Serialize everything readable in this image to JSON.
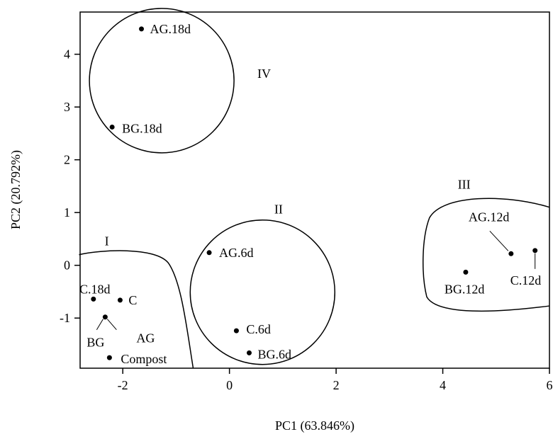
{
  "chart_data": {
    "type": "scatter",
    "title": "",
    "xlabel": "PC1 (63.846%)",
    "ylabel": "PC2 (20.792%)",
    "xlim": [
      -2.8,
      6
    ],
    "ylim": [
      -1.95,
      4.8
    ],
    "xticks": [
      -2,
      0,
      2,
      4,
      6
    ],
    "yticks": [
      -1,
      0,
      1,
      2,
      3,
      4
    ],
    "grid": false,
    "legend": "none",
    "points": [
      {
        "label": "AG.18d",
        "x": -1.65,
        "y": 4.48
      },
      {
        "label": "BG.18d",
        "x": -2.2,
        "y": 2.62
      },
      {
        "label": "AG.6d",
        "x": -0.38,
        "y": 0.24
      },
      {
        "label": "C.6d",
        "x": 0.13,
        "y": -1.24
      },
      {
        "label": "BG.6d",
        "x": 0.37,
        "y": -1.66
      },
      {
        "label": "C.18d",
        "x": -2.55,
        "y": -0.64
      },
      {
        "label": "C",
        "x": -2.05,
        "y": -0.66
      },
      {
        "label": "AG",
        "x": -2.33,
        "y": -0.98
      },
      {
        "label": "BG",
        "x": -2.33,
        "y": -0.98
      },
      {
        "label": "Compost",
        "x": -2.25,
        "y": -1.75
      },
      {
        "label": "AG.12d",
        "x": 5.28,
        "y": 0.22
      },
      {
        "label": "BG.12d",
        "x": 4.43,
        "y": -0.13
      },
      {
        "label": "C.12d",
        "x": 5.73,
        "y": 0.28
      }
    ],
    "groups": [
      {
        "label": "I"
      },
      {
        "label": "II"
      },
      {
        "label": "III"
      },
      {
        "label": "IV"
      }
    ],
    "point_color": "#000000"
  }
}
